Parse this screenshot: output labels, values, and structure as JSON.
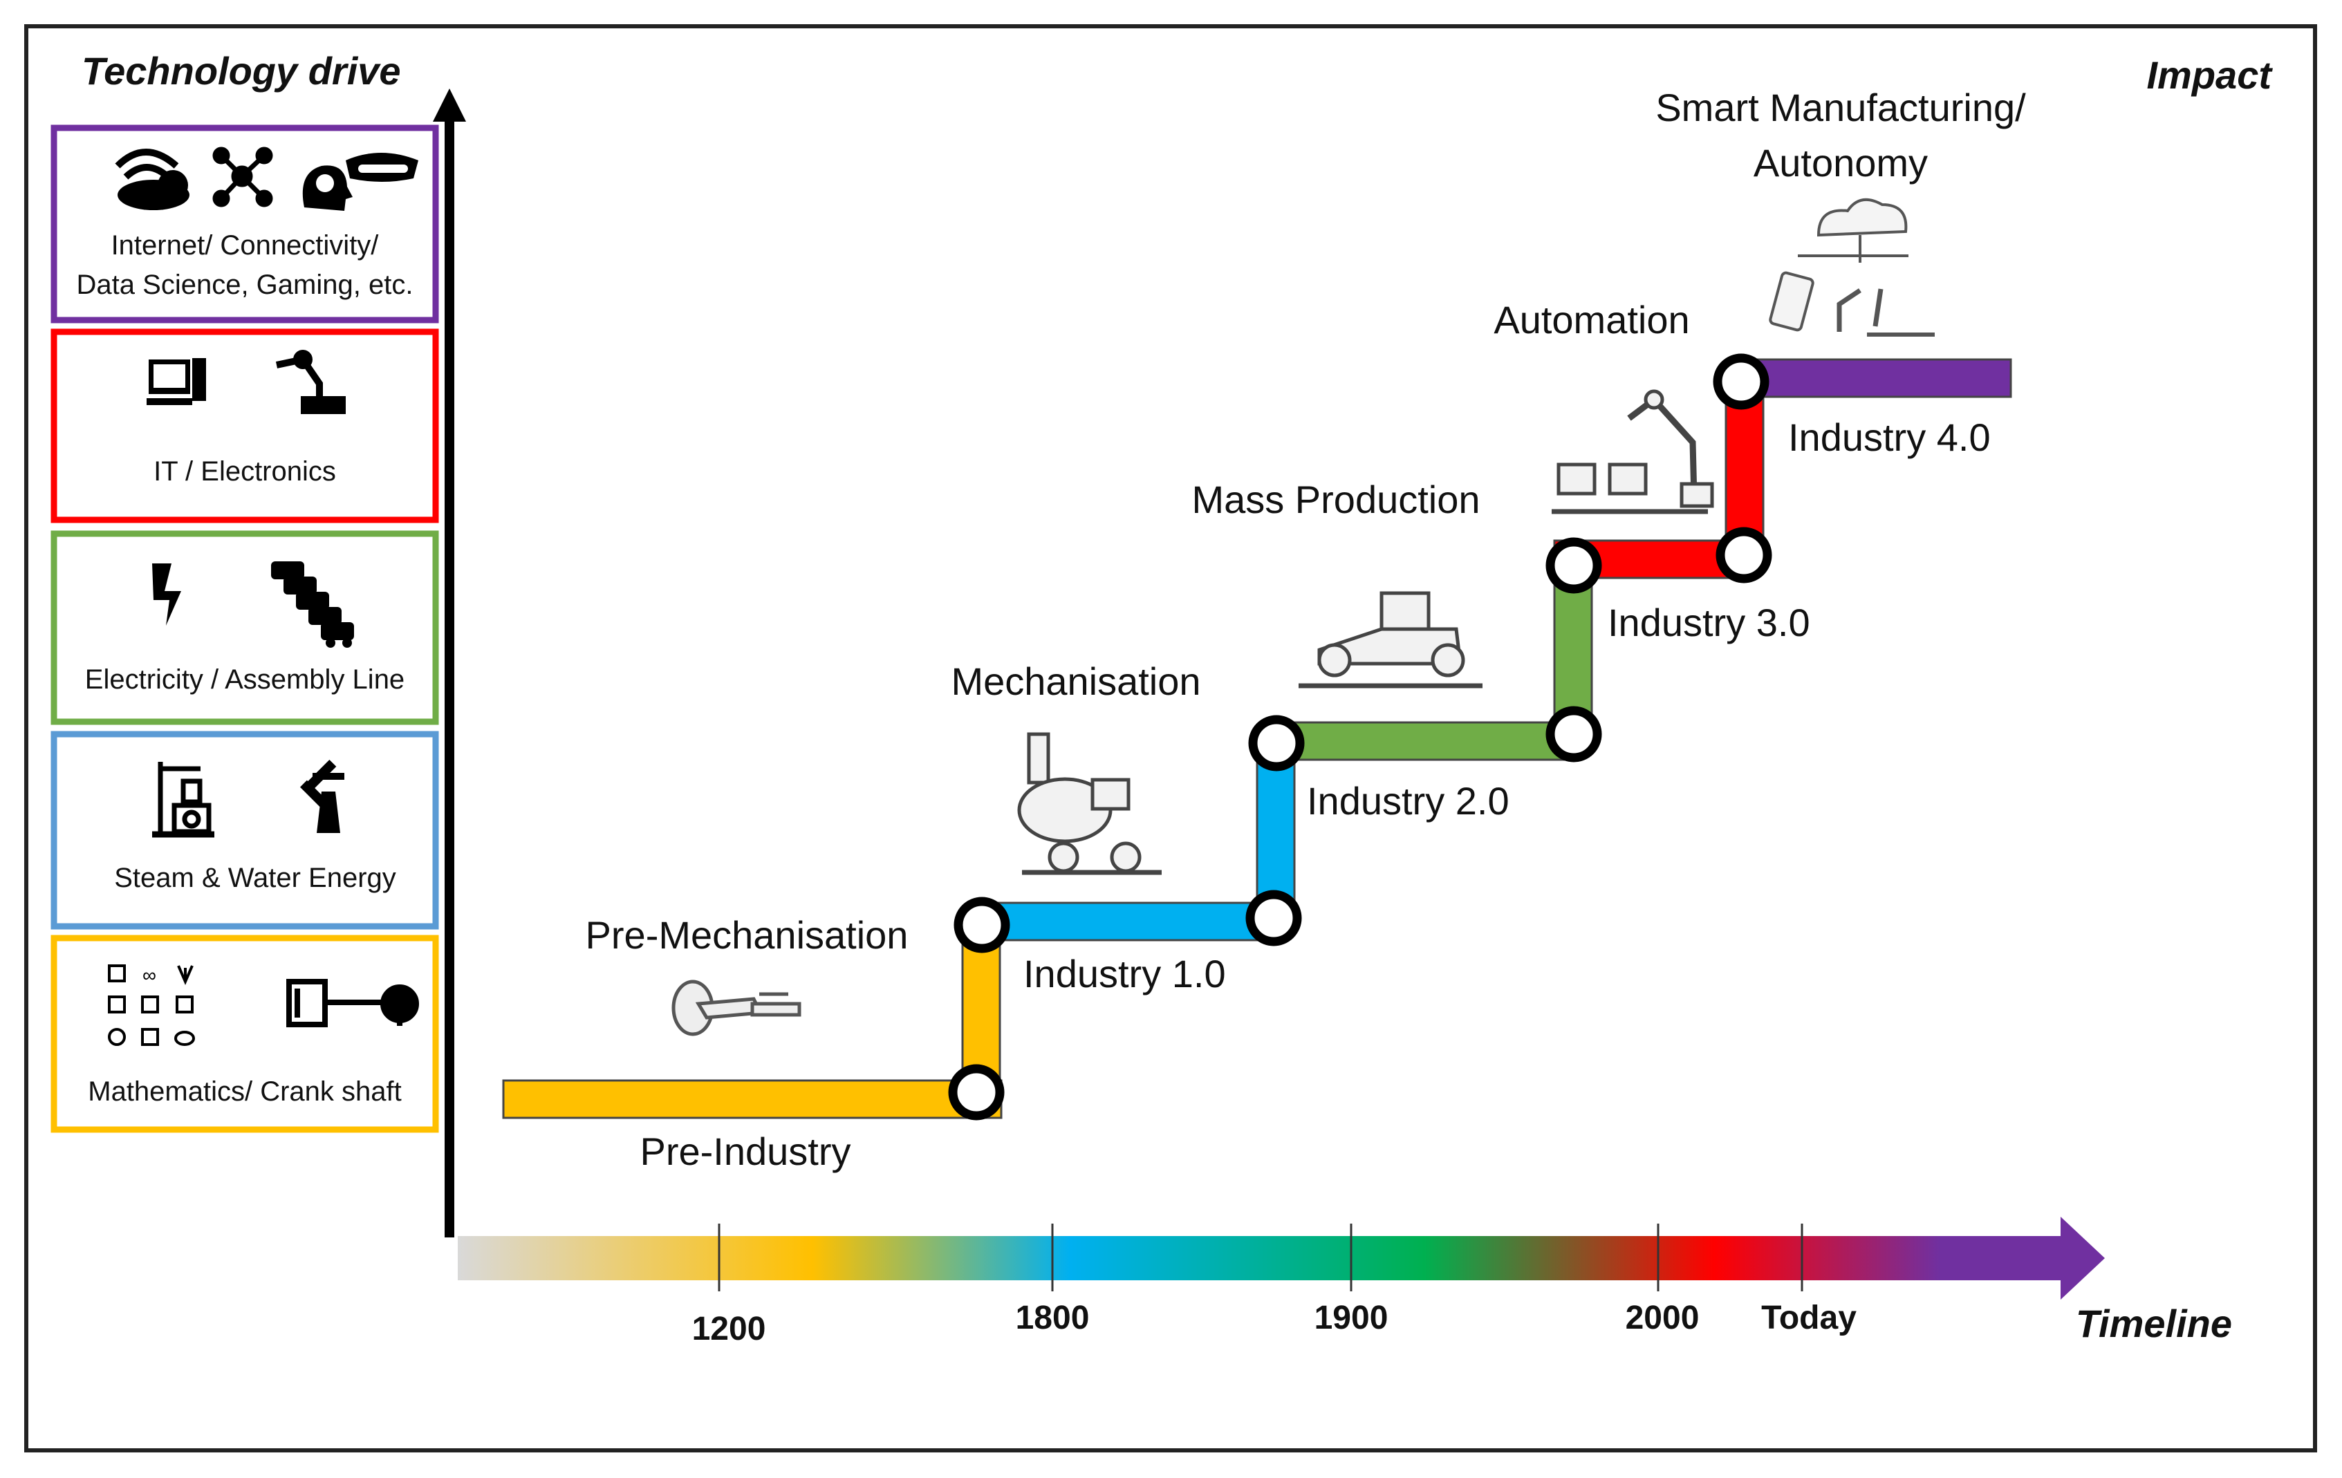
{
  "headings": {
    "left": "Technology drive",
    "right": "Impact",
    "timeline": "Timeline"
  },
  "tech_boxes": [
    {
      "id": "box-internet",
      "color": "#7030A0",
      "line1": "Internet/ Connectivity/",
      "line2": "Data Science, Gaming, etc.",
      "icons": [
        "wifi-cloud-icon",
        "network-icon",
        "brain-head-icon",
        "vr-headset-icon"
      ]
    },
    {
      "id": "box-it",
      "color": "#FF0000",
      "line1": "IT / Electronics",
      "line2": "",
      "icons": [
        "computer-icon",
        "robot-arm-icon"
      ]
    },
    {
      "id": "box-electricity",
      "color": "#70AD47",
      "line1": "Electricity / Assembly Line",
      "line2": "",
      "icons": [
        "lightning-icon",
        "cars-line-icon"
      ]
    },
    {
      "id": "box-steam",
      "color": "#5B9BD5",
      "line1": "Steam & Water Energy",
      "line2": "",
      "icons": [
        "steam-engine-icon",
        "windmill-icon"
      ]
    },
    {
      "id": "box-math",
      "color": "#FFC000",
      "line1": "Mathematics/ Crank shaft",
      "line2": "",
      "icons": [
        "math-symbols-icon",
        "crank-shaft-icon"
      ]
    }
  ],
  "stages": [
    {
      "id": "pre-industry",
      "color": "#FFC000",
      "label": "Pre-Industry",
      "era": "Pre-Mechanisation",
      "illustration": "pulley-lever-icon"
    },
    {
      "id": "industry-1",
      "color": "#00B0F0",
      "label": "Industry 1.0",
      "era": "Mechanisation",
      "illustration": "steam-locomotive-icon"
    },
    {
      "id": "industry-2",
      "color": "#70AD47",
      "label": "Industry 2.0",
      "era": "Mass Production",
      "illustration": "car-on-line-icon"
    },
    {
      "id": "industry-3",
      "color": "#FF0000",
      "label": "Industry 3.0",
      "era": "Automation",
      "illustration": "robot-arm-boxes-icon"
    },
    {
      "id": "industry-4",
      "color": "#7030A0",
      "label": "Industry 4.0",
      "era_line1": "Smart Manufacturing/",
      "era_line2": "Autonomy",
      "illustration": "cloud-factory-icon"
    }
  ],
  "timeline_ticks": [
    "1200",
    "1800",
    "1900",
    "2000",
    "Today"
  ],
  "timeline_gradient": [
    "#D9D9D9",
    "#FFC000",
    "#00B0F0",
    "#00B050",
    "#FF0000",
    "#7030A0"
  ]
}
